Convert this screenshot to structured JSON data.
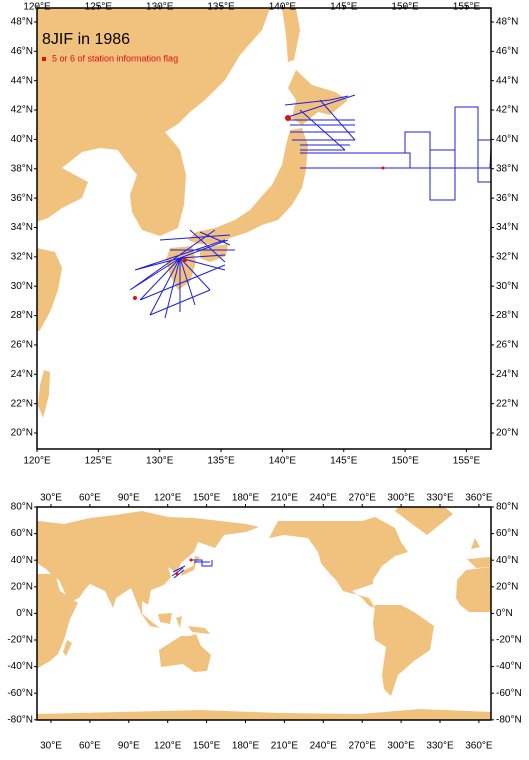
{
  "title": "8JIF in 1986",
  "legend": "5 or 6 of station information flag",
  "regional_map": {
    "lon_labels": [
      "120°E",
      "125°E",
      "130°E",
      "135°E",
      "140°E",
      "145°E",
      "150°E",
      "155°E"
    ],
    "lat_labels": [
      "20°N",
      "22°N",
      "24°N",
      "26°N",
      "28°N",
      "30°N",
      "32°N",
      "34°N",
      "36°N",
      "38°N",
      "40°N",
      "42°N",
      "44°N",
      "46°N",
      "48°N"
    ]
  },
  "world_map": {
    "lon_labels": [
      "30°E",
      "60°E",
      "90°E",
      "120°E",
      "150°E",
      "180°E",
      "210°E",
      "240°E",
      "270°E",
      "300°E",
      "330°E",
      "360°E"
    ],
    "lat_labels": [
      "80°N",
      "60°N",
      "40°N",
      "20°N",
      "0°N",
      "-20°N",
      "-40°N",
      "-60°N",
      "-80°N"
    ]
  }
}
